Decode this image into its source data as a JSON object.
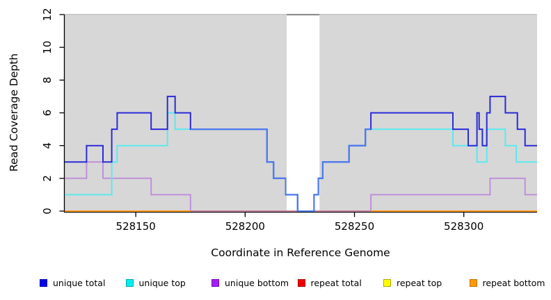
{
  "chart_data": {
    "type": "line",
    "subtype": "step-coverage-plot",
    "title": "",
    "xlabel": "Coordinate in Reference Genome",
    "ylabel": "Read Coverage Depth",
    "x_domain": [
      528117.5,
      528333.5
    ],
    "y_domain": [
      0,
      12
    ],
    "x_ticks": [
      528150,
      528200,
      528250,
      528300
    ],
    "y_ticks": [
      0,
      2,
      4,
      6,
      8,
      10,
      12
    ],
    "grid": "off",
    "plot_bg_color": "#d7d7d7",
    "plot_top_edge_color": "#c6c6c6",
    "no_data_region": {
      "x1": 528219,
      "x2": 528234,
      "color": "#ffffff",
      "top_edge_color": "#8e8e8e"
    },
    "x_end": 528333.5,
    "series": [
      {
        "name": "unique-bottom",
        "legend_label": "unique bottom",
        "color": "#c08fdc",
        "points": [
          [
            528117.5,
            2
          ],
          [
            528127.5,
            3
          ],
          [
            528135,
            2
          ],
          [
            528157,
            1
          ],
          [
            528175,
            0
          ],
          [
            528257.5,
            1
          ],
          [
            528312,
            2
          ],
          [
            528328,
            1
          ]
        ]
      },
      {
        "name": "repeat-total",
        "legend_label": "repeat total",
        "color": "#e02020",
        "points": [
          [
            528117.5,
            0
          ]
        ]
      },
      {
        "name": "repeat-top",
        "legend_label": "repeat top",
        "color": "#f5e93a",
        "points": [
          [
            528117.5,
            0
          ]
        ]
      },
      {
        "name": "repeat-bottom",
        "legend_label": "repeat bottom",
        "color": "#ff9a1a",
        "points": [
          [
            528117.5,
            0
          ]
        ]
      },
      {
        "name": "baseline-blend-overlay",
        "legend_label": null,
        "color": "#c77f9e",
        "points": [
          [
            528175,
            0
          ]
        ],
        "x_end": 528257.5
      },
      {
        "name": "unique-top",
        "legend_label": "unique top",
        "color": "#5ce9ee",
        "points": [
          [
            528117.5,
            1
          ],
          [
            528139,
            3
          ],
          [
            528141.5,
            4
          ],
          [
            528164.5,
            6
          ],
          [
            528168,
            5
          ],
          [
            528210,
            3
          ],
          [
            528213,
            2
          ],
          [
            528218.5,
            1
          ],
          [
            528224,
            0
          ],
          [
            528231.5,
            1
          ],
          [
            528233.5,
            2
          ],
          [
            528235.5,
            3
          ],
          [
            528247.5,
            4
          ],
          [
            528255,
            5
          ],
          [
            528295,
            4
          ],
          [
            528306,
            3
          ],
          [
            528310.5,
            5
          ],
          [
            528319,
            4
          ],
          [
            528324,
            3
          ]
        ]
      },
      {
        "name": "unique-total",
        "legend_label": "unique total",
        "color": "#2a2ad8",
        "points": [
          [
            528117.5,
            3
          ],
          [
            528127.5,
            4
          ],
          [
            528135,
            3
          ],
          [
            528139,
            5
          ],
          [
            528141.5,
            6
          ],
          [
            528157,
            5
          ],
          [
            528164.5,
            7
          ],
          [
            528168,
            6
          ],
          [
            528175,
            5
          ],
          [
            528210,
            3
          ],
          [
            528213,
            2
          ],
          [
            528218.5,
            1
          ],
          [
            528224,
            0
          ],
          [
            528231.5,
            1
          ],
          [
            528233.5,
            2
          ],
          [
            528235.5,
            3
          ],
          [
            528247.5,
            4
          ],
          [
            528255,
            5
          ],
          [
            528257.5,
            6
          ],
          [
            528295,
            5
          ],
          [
            528302,
            4
          ],
          [
            528306,
            6
          ],
          [
            528307,
            5
          ],
          [
            528308.5,
            4
          ],
          [
            528310.5,
            6
          ],
          [
            528312,
            7
          ],
          [
            528319,
            6
          ],
          [
            528324.5,
            5
          ],
          [
            528328,
            4
          ]
        ]
      },
      {
        "name": "unique-total-over-top-overlay",
        "legend_label": null,
        "color": "#4d7bf0",
        "points": [
          [
            528175,
            5
          ],
          [
            528210,
            3
          ],
          [
            528213,
            2
          ],
          [
            528218.5,
            1
          ],
          [
            528224,
            0
          ],
          [
            528231.5,
            1
          ],
          [
            528233.5,
            2
          ],
          [
            528235.5,
            3
          ],
          [
            528247.5,
            4
          ],
          [
            528255,
            5
          ]
        ],
        "x_end": 528257.5
      }
    ]
  },
  "legend": {
    "items": [
      {
        "label": "unique total",
        "fill": "#0000ee",
        "edge": "#0000aa"
      },
      {
        "label": "unique top",
        "fill": "#00eeee",
        "edge": "#00a8a8"
      },
      {
        "label": "unique bottom",
        "fill": "#a020f0",
        "edge": "#7a00c0"
      },
      {
        "label": "repeat total",
        "fill": "#ee0000",
        "edge": "#a80000"
      },
      {
        "label": "repeat top",
        "fill": "#ffff00",
        "edge": "#a8a800"
      },
      {
        "label": "repeat bottom",
        "fill": "#ff9900",
        "edge": "#c06f00"
      }
    ]
  }
}
